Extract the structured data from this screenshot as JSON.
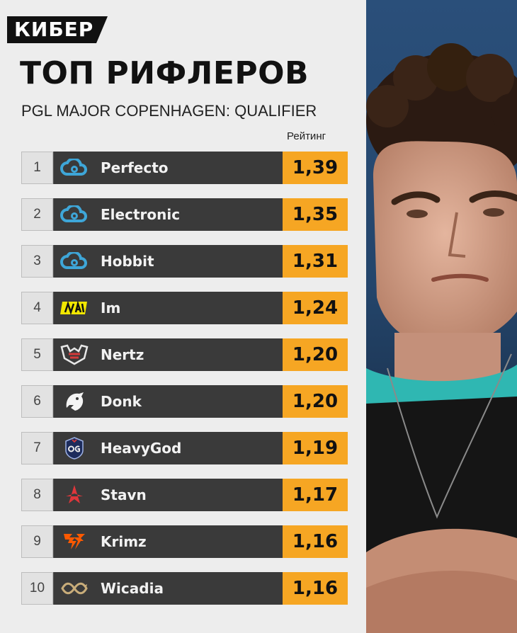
{
  "brand": {
    "name": "КИБЕР"
  },
  "title": "ТОП РИФЛЕРОВ",
  "subtitle": "PGL MAJOR COPENHAGEN: QUALIFIER",
  "column_header": "Рейтинг",
  "accent_color": "#f6a623",
  "players": [
    {
      "rank": "1",
      "name": "Perfecto",
      "rating": "1,39",
      "team_icon": "cloud9-logo"
    },
    {
      "rank": "2",
      "name": "Electronic",
      "rating": "1,35",
      "team_icon": "cloud9-logo"
    },
    {
      "rank": "3",
      "name": "Hobbit",
      "rating": "1,31",
      "team_icon": "cloud9-logo"
    },
    {
      "rank": "4",
      "name": "Im",
      "rating": "1,24",
      "team_icon": "navi-logo"
    },
    {
      "rank": "5",
      "name": "Nertz",
      "rating": "1,20",
      "team_icon": "heroic-logo"
    },
    {
      "rank": "6",
      "name": "Donk",
      "rating": "1,20",
      "team_icon": "spirit-logo"
    },
    {
      "rank": "7",
      "name": "HeavyGod",
      "rating": "1,19",
      "team_icon": "og-logo"
    },
    {
      "rank": "8",
      "name": "Stavn",
      "rating": "1,17",
      "team_icon": "astralis-logo"
    },
    {
      "rank": "9",
      "name": "Krimz",
      "rating": "1,16",
      "team_icon": "fnatic-logo"
    },
    {
      "rank": "10",
      "name": "Wicadia",
      "rating": "1,16",
      "team_icon": "eternal-fire-logo"
    }
  ]
}
